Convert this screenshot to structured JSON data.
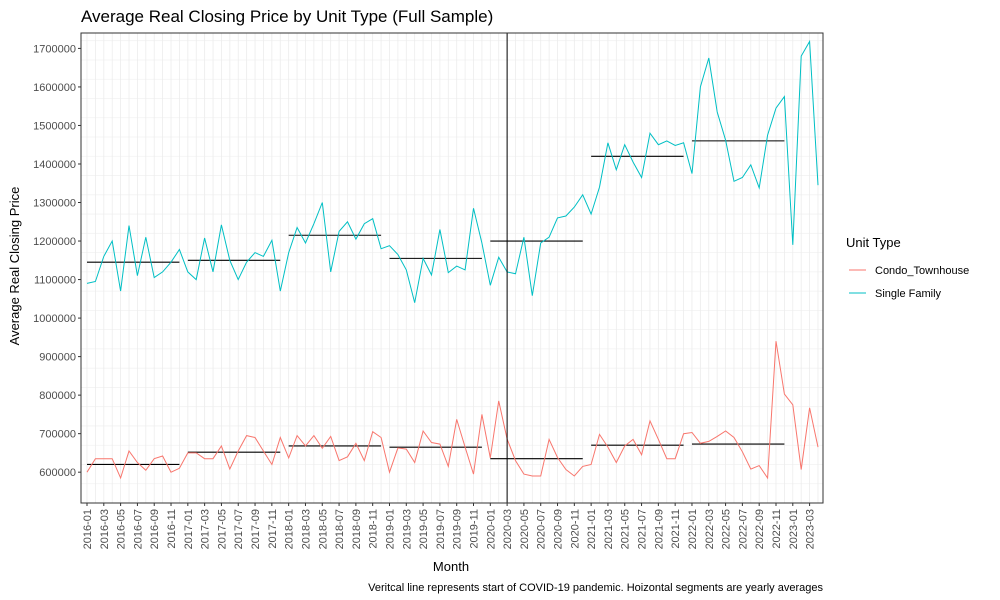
{
  "chart_data": {
    "type": "line",
    "title": "Average Real Closing Price by Unit Type (Full Sample)",
    "xlabel": "Month",
    "ylabel": "Average Real Closing Price",
    "caption": "Veritcal line represents start of COVID-19 pandemic. Hoizontal segments are yearly averages",
    "legend_title": "Unit Type",
    "legend_position": "right",
    "ylim": [
      520000,
      1740000
    ],
    "yticks": [
      600000,
      700000,
      800000,
      900000,
      1000000,
      1100000,
      1200000,
      1300000,
      1400000,
      1500000,
      1600000,
      1700000
    ],
    "xticks": [
      "2016-01",
      "2016-03",
      "2016-05",
      "2016-07",
      "2016-09",
      "2016-11",
      "2017-01",
      "2017-03",
      "2017-05",
      "2017-07",
      "2017-09",
      "2017-11",
      "2018-01",
      "2018-03",
      "2018-05",
      "2018-07",
      "2018-09",
      "2018-11",
      "2019-01",
      "2019-03",
      "2019-05",
      "2019-07",
      "2019-09",
      "2019-11",
      "2020-01",
      "2020-03",
      "2020-05",
      "2020-07",
      "2020-09",
      "2020-11",
      "2021-01",
      "2021-03",
      "2021-05",
      "2021-07",
      "2021-09",
      "2021-11",
      "2022-01",
      "2022-03",
      "2022-05",
      "2022-07",
      "2022-09",
      "2022-11",
      "2023-01",
      "2023-03"
    ],
    "vline": "2020-03",
    "series": [
      {
        "name": "Condo_Townhouse",
        "color": "#F8766D",
        "values": [
          600000,
          635000,
          635000,
          635000,
          585000,
          655000,
          625000,
          605000,
          635000,
          642000,
          600000,
          610000,
          650000,
          650000,
          635000,
          635000,
          668000,
          608000,
          655000,
          695000,
          690000,
          655000,
          620000,
          690000,
          637000,
          695000,
          668000,
          695000,
          662000,
          693000,
          630000,
          640000,
          675000,
          630000,
          705000,
          690000,
          600000,
          663000,
          660000,
          625000,
          707000,
          677000,
          673000,
          615000,
          737000,
          665000,
          595000,
          750000,
          637000,
          785000,
          686000,
          630000,
          595000,
          590000,
          590000,
          685000,
          638000,
          607000,
          590000,
          615000,
          620000,
          698000,
          665000,
          625000,
          668000,
          685000,
          645000,
          733000,
          685000,
          635000,
          635000,
          700000,
          703000,
          675000,
          680000,
          693000,
          707000,
          690000,
          653000,
          608000,
          617000,
          585000,
          940000,
          803000,
          775000,
          607000,
          767000,
          665000
        ]
      },
      {
        "name": "Single Family",
        "color": "#00BFC4",
        "values": [
          1090000,
          1095000,
          1160000,
          1200000,
          1070000,
          1240000,
          1110000,
          1210000,
          1105000,
          1120000,
          1145000,
          1178000,
          1120000,
          1100000,
          1208000,
          1120000,
          1242000,
          1150000,
          1100000,
          1145000,
          1170000,
          1160000,
          1202000,
          1070000,
          1170000,
          1235000,
          1195000,
          1245000,
          1300000,
          1120000,
          1225000,
          1250000,
          1205000,
          1245000,
          1258000,
          1180000,
          1188000,
          1165000,
          1125000,
          1040000,
          1155000,
          1112000,
          1230000,
          1118000,
          1135000,
          1125000,
          1285000,
          1195000,
          1085000,
          1158000,
          1120000,
          1115000,
          1210000,
          1058000,
          1195000,
          1210000,
          1260000,
          1265000,
          1288000,
          1320000,
          1270000,
          1340000,
          1455000,
          1385000,
          1450000,
          1405000,
          1365000,
          1480000,
          1450000,
          1460000,
          1448000,
          1455000,
          1375000,
          1600000,
          1675000,
          1535000,
          1462000,
          1355000,
          1365000,
          1398000,
          1338000,
          1475000,
          1545000,
          1575000,
          1190000,
          1680000,
          1718000,
          1345000
        ]
      }
    ],
    "yearly_averages": [
      {
        "series": "Single Family",
        "year": "2016",
        "value": 1145000
      },
      {
        "series": "Single Family",
        "year": "2017",
        "value": 1150000
      },
      {
        "series": "Single Family",
        "year": "2018",
        "value": 1215000
      },
      {
        "series": "Single Family",
        "year": "2019",
        "value": 1155000
      },
      {
        "series": "Single Family",
        "year": "2020",
        "value": 1200000
      },
      {
        "series": "Single Family",
        "year": "2021",
        "value": 1420000
      },
      {
        "series": "Single Family",
        "year": "2022",
        "value": 1460000
      },
      {
        "series": "Condo_Townhouse",
        "year": "2016",
        "value": 620000
      },
      {
        "series": "Condo_Townhouse",
        "year": "2017",
        "value": 652000
      },
      {
        "series": "Condo_Townhouse",
        "year": "2018",
        "value": 668000
      },
      {
        "series": "Condo_Townhouse",
        "year": "2019",
        "value": 665000
      },
      {
        "series": "Condo_Townhouse",
        "year": "2020",
        "value": 635000
      },
      {
        "series": "Condo_Townhouse",
        "year": "2021",
        "value": 670000
      },
      {
        "series": "Condo_Townhouse",
        "year": "2022",
        "value": 673000
      }
    ]
  }
}
